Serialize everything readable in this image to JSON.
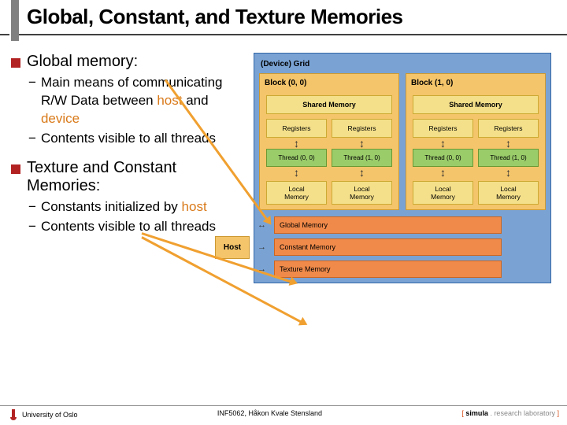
{
  "title": "Global, Constant, and Texture Memories",
  "section1": {
    "heading": "Global memory:",
    "items": [
      {
        "pre": "Main means of communicating R/W Data between ",
        "kw1": "host",
        "mid": " and ",
        "kw2": "device"
      },
      {
        "text": "Contents visible to all threads"
      }
    ]
  },
  "section2": {
    "heading": "Texture and Constant Memories:",
    "items": [
      {
        "pre": "Constants initialized by ",
        "kw1": "host"
      },
      {
        "text": "Contents visible to all threads"
      }
    ]
  },
  "diagram": {
    "grid_title": "(Device) Grid",
    "blocks": [
      {
        "title": "Block (0, 0)"
      },
      {
        "title": "Block (1, 0)"
      }
    ],
    "shared_label": "Shared Memory",
    "reg_label": "Registers",
    "threads": [
      "Thread (0, 0)",
      "Thread (1, 0)"
    ],
    "local_label": "Local Memory",
    "host_label": "Host",
    "mem_bars": [
      "Global Memory",
      "Constant Memory",
      "Texture Memory"
    ],
    "colors": {
      "grid_bg": "#7aa3d4",
      "block_bg": "#f4c56a",
      "shared_bg": "#f4e08a",
      "thread_bg": "#9acc6a",
      "mem_bg": "#f08a4a"
    }
  },
  "footer": {
    "left": "University of Oslo",
    "center": "INF5062, Håkon Kvale Stensland",
    "right_bracket_open": "[ ",
    "right_name": "simula",
    "right_suffix": " . research laboratory ",
    "right_bracket_close": "]"
  }
}
